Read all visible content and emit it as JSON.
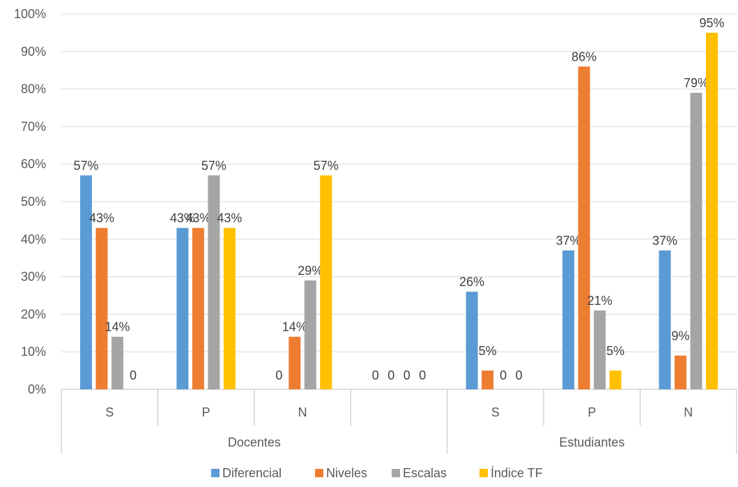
{
  "chart_data": {
    "type": "bar",
    "title": "",
    "xlabel": "",
    "ylabel": "",
    "ylim": [
      0,
      100
    ],
    "yticks": [
      "0%",
      "10%",
      "20%",
      "30%",
      "40%",
      "50%",
      "60%",
      "70%",
      "80%",
      "90%",
      "100%"
    ],
    "grid": "horizontal",
    "legend_position": "bottom",
    "groups": [
      {
        "label": "Docentes",
        "categories": [
          "S",
          "P",
          "N",
          ""
        ]
      },
      {
        "label": "Estudiantes",
        "categories": [
          "S",
          "P",
          "N"
        ]
      }
    ],
    "categories": [
      "S",
      "P",
      "N",
      "",
      "S",
      "P",
      "N"
    ],
    "series": [
      {
        "name": "Diferencial",
        "color": "#5B9BD5",
        "values": [
          57,
          43,
          0,
          0,
          26,
          37,
          37
        ],
        "labels": [
          "57%",
          "43%",
          "0",
          "0",
          "26%",
          "37%",
          "37%"
        ]
      },
      {
        "name": "Niveles",
        "color": "#ED7D31",
        "values": [
          43,
          43,
          14,
          0,
          5,
          86,
          9
        ],
        "labels": [
          "43%",
          "43%",
          "14%",
          "0",
          "5%",
          "86%",
          "9%"
        ]
      },
      {
        "name": "Escalas",
        "color": "#A5A5A5",
        "values": [
          14,
          57,
          29,
          0,
          0,
          21,
          79
        ],
        "labels": [
          "14%",
          "57%",
          "29%",
          "0",
          "0",
          "21%",
          "79%"
        ]
      },
      {
        "name": "Índice TF",
        "color": "#FFC000",
        "values": [
          0,
          43,
          57,
          0,
          0,
          5,
          95
        ],
        "labels": [
          "0",
          "43%",
          "57%",
          "0",
          "0",
          "5%",
          "95%"
        ]
      }
    ]
  }
}
